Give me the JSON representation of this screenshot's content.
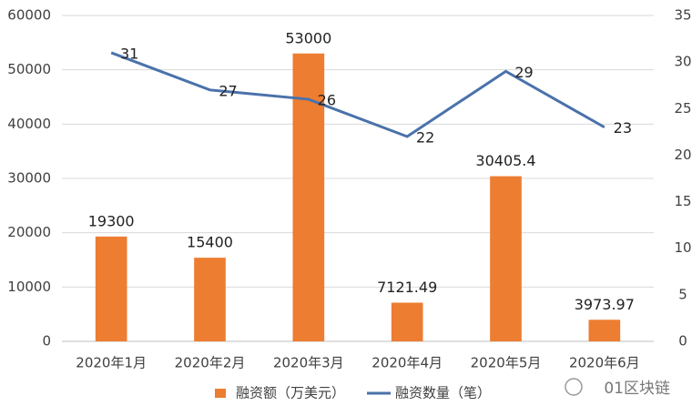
{
  "chart_data": {
    "type": "bar",
    "categories": [
      "2020年1月",
      "2020年2月",
      "2020年3月",
      "2020年4月",
      "2020年5月",
      "2020年6月"
    ],
    "series": [
      {
        "name": "融资额（万美元）",
        "type": "bar",
        "color": "#ed7d31",
        "values": [
          19300,
          15400,
          53000,
          7121.49,
          30405.4,
          3973.97
        ]
      },
      {
        "name": "融资数量（笔）",
        "type": "line",
        "axis": "y2",
        "color": "#4a72aa",
        "values": [
          31,
          27,
          26,
          22,
          29,
          23
        ]
      }
    ],
    "ylim": [
      0,
      60000
    ],
    "yticks": [
      0,
      10000,
      20000,
      30000,
      40000,
      50000,
      60000
    ],
    "y2lim": [
      0,
      35
    ],
    "y2ticks": [
      0,
      5,
      10,
      15,
      20,
      25,
      30,
      35
    ],
    "grid": true,
    "legend": "bottom"
  },
  "watermark": "01区块链"
}
